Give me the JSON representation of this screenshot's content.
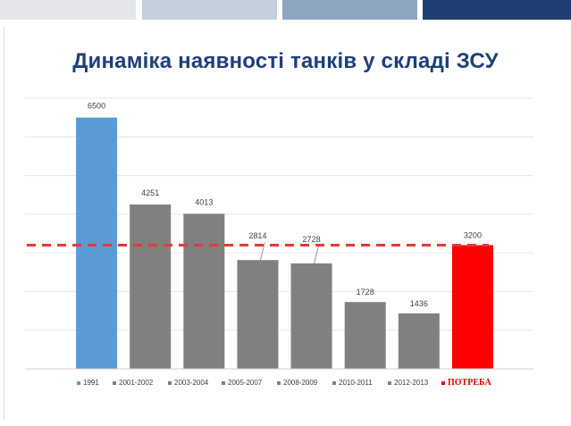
{
  "header": {
    "strip_colors": [
      "#e4e6e9",
      "#c3cfdd",
      "#8fa6c0",
      "#1f3f73"
    ]
  },
  "slide": {
    "title": "Динаміка наявності танків у складі ЗСУ"
  },
  "colors": {
    "inventory": "#5b9bd5",
    "years": "#808080",
    "requirement": "#ff0000",
    "threshold_line": "#e23a3a",
    "gridline": "#e6e6e6",
    "label_text": "#404040",
    "requirement_legend_text": "#e00000"
  },
  "chart_data": {
    "type": "bar",
    "title": "Динаміка наявності танків у складі ЗСУ",
    "categories": [
      "1991",
      "2001-2002",
      "2003-2004",
      "2005-2007",
      "2008-2009",
      "2010-2011",
      "2012-2013",
      "ПОТРЕБА"
    ],
    "values": [
      6500,
      4251,
      4013,
      2814,
      2728,
      1728,
      1436,
      3200
    ],
    "data_labels": [
      "6500",
      "4251",
      "4013",
      "2814",
      "2728",
      "1728",
      "1436",
      "3200"
    ],
    "bar_colors": [
      "#5b9bd5",
      "#808080",
      "#808080",
      "#808080",
      "#808080",
      "#808080",
      "#808080",
      "#ff0000"
    ],
    "reference_line": {
      "value": 3200,
      "style": "dashed",
      "color": "#e23a3a"
    },
    "ylim": [
      0,
      7000
    ],
    "grid": true,
    "legend": {
      "placement": "bottom",
      "entries": [
        "1991",
        "2001-2002",
        "2003-2004",
        "2005-2007",
        "2008-2009",
        "2010-2011",
        "2012-2013",
        "ПОТРЕБА"
      ]
    },
    "xlabel": "",
    "ylabel": ""
  }
}
